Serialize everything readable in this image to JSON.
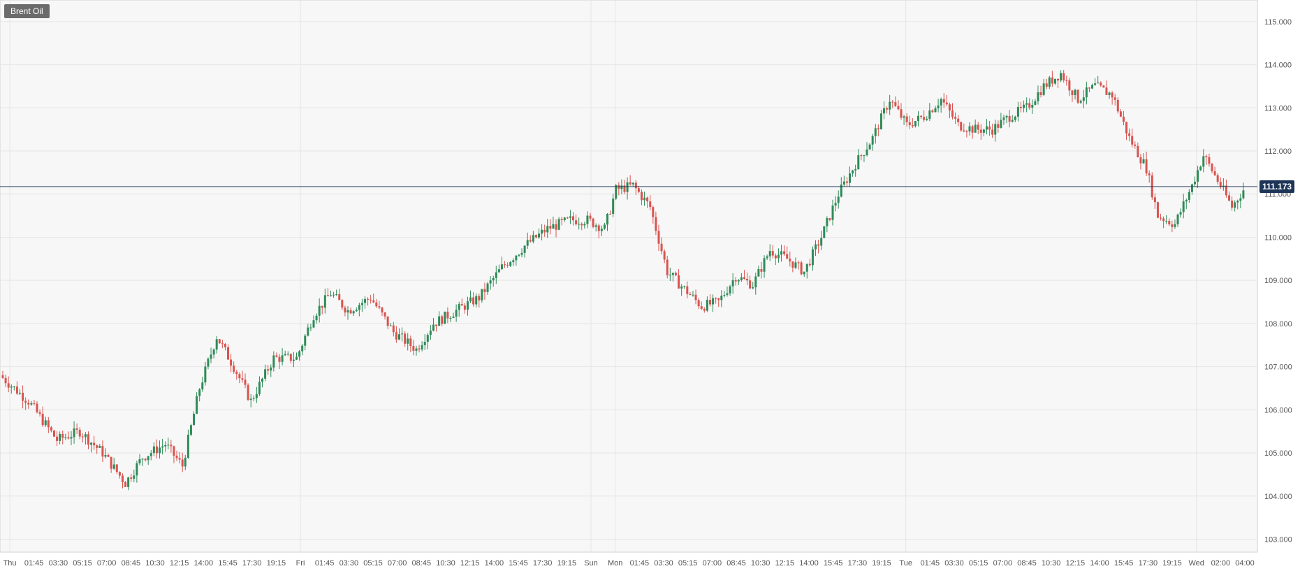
{
  "symbol": "Brent Oil",
  "last_price_label": "111.173",
  "colors": {
    "up": "#2e8b57",
    "down": "#d9534f",
    "grid": "#e6e6e6",
    "background": "#f7f7f7",
    "last_price_line": "#1d3557"
  },
  "chart_data": {
    "type": "candlestick",
    "title": "Brent Oil",
    "ylim": [
      102.7,
      115.5
    ],
    "y_ticks": [
      "103.000",
      "104.000",
      "105.000",
      "106.000",
      "107.000",
      "108.000",
      "109.000",
      "110.000",
      "111.000",
      "112.000",
      "113.000",
      "114.000",
      "115.000"
    ],
    "x_ticks": [
      "Thu",
      "01:45",
      "03:30",
      "05:15",
      "07:00",
      "08:45",
      "10:30",
      "12:15",
      "14:00",
      "15:45",
      "17:30",
      "19:15",
      "Fri",
      "01:45",
      "03:30",
      "05:15",
      "07:00",
      "08:45",
      "10:30",
      "12:15",
      "14:00",
      "15:45",
      "17:30",
      "19:15",
      "Sun",
      "Mon",
      "01:45",
      "03:30",
      "05:15",
      "07:00",
      "08:45",
      "10:30",
      "12:15",
      "14:00",
      "15:45",
      "17:30",
      "19:15",
      "Tue",
      "01:45",
      "03:30",
      "05:15",
      "07:00",
      "08:45",
      "10:30",
      "12:15",
      "14:00",
      "15:45",
      "17:30",
      "19:15",
      "Wed",
      "02:00",
      "04:00"
    ],
    "last_price": 111.173,
    "grid": true,
    "close_path": [
      [
        0,
        106.8
      ],
      [
        10,
        106.2
      ],
      [
        20,
        105.3
      ],
      [
        28,
        105.5
      ],
      [
        36,
        105.0
      ],
      [
        44,
        104.3
      ],
      [
        50,
        104.9
      ],
      [
        58,
        105.2
      ],
      [
        64,
        104.7
      ],
      [
        70,
        106.5
      ],
      [
        76,
        107.7
      ],
      [
        82,
        107.0
      ],
      [
        88,
        106.2
      ],
      [
        96,
        107.2
      ],
      [
        104,
        107.2
      ],
      [
        110,
        108.2
      ],
      [
        116,
        108.7
      ],
      [
        122,
        108.3
      ],
      [
        130,
        108.6
      ],
      [
        138,
        107.8
      ],
      [
        146,
        107.4
      ],
      [
        152,
        108.0
      ],
      [
        160,
        108.3
      ],
      [
        168,
        108.6
      ],
      [
        176,
        109.3
      ],
      [
        184,
        109.8
      ],
      [
        192,
        110.2
      ],
      [
        200,
        110.4
      ],
      [
        206,
        110.4
      ],
      [
        212,
        110.2
      ],
      [
        216,
        111.1
      ],
      [
        222,
        111.2
      ],
      [
        228,
        110.7
      ],
      [
        234,
        109.2
      ],
      [
        240,
        108.8
      ],
      [
        246,
        108.4
      ],
      [
        252,
        108.5
      ],
      [
        258,
        109.1
      ],
      [
        264,
        108.9
      ],
      [
        270,
        109.7
      ],
      [
        276,
        109.5
      ],
      [
        282,
        109.2
      ],
      [
        288,
        110.0
      ],
      [
        294,
        111.0
      ],
      [
        300,
        111.7
      ],
      [
        306,
        112.3
      ],
      [
        312,
        113.2
      ],
      [
        318,
        112.6
      ],
      [
        324,
        112.8
      ],
      [
        330,
        113.2
      ],
      [
        336,
        112.6
      ],
      [
        342,
        112.5
      ],
      [
        348,
        112.5
      ],
      [
        354,
        112.8
      ],
      [
        360,
        113.0
      ],
      [
        366,
        113.5
      ],
      [
        372,
        113.8
      ],
      [
        378,
        113.2
      ],
      [
        384,
        113.5
      ],
      [
        390,
        113.3
      ],
      [
        396,
        112.3
      ],
      [
        402,
        111.6
      ],
      [
        406,
        110.5
      ],
      [
        412,
        110.3
      ],
      [
        418,
        111.2
      ],
      [
        422,
        111.9
      ],
      [
        428,
        111.2
      ],
      [
        432,
        110.7
      ],
      [
        436,
        111.1
      ]
    ]
  }
}
